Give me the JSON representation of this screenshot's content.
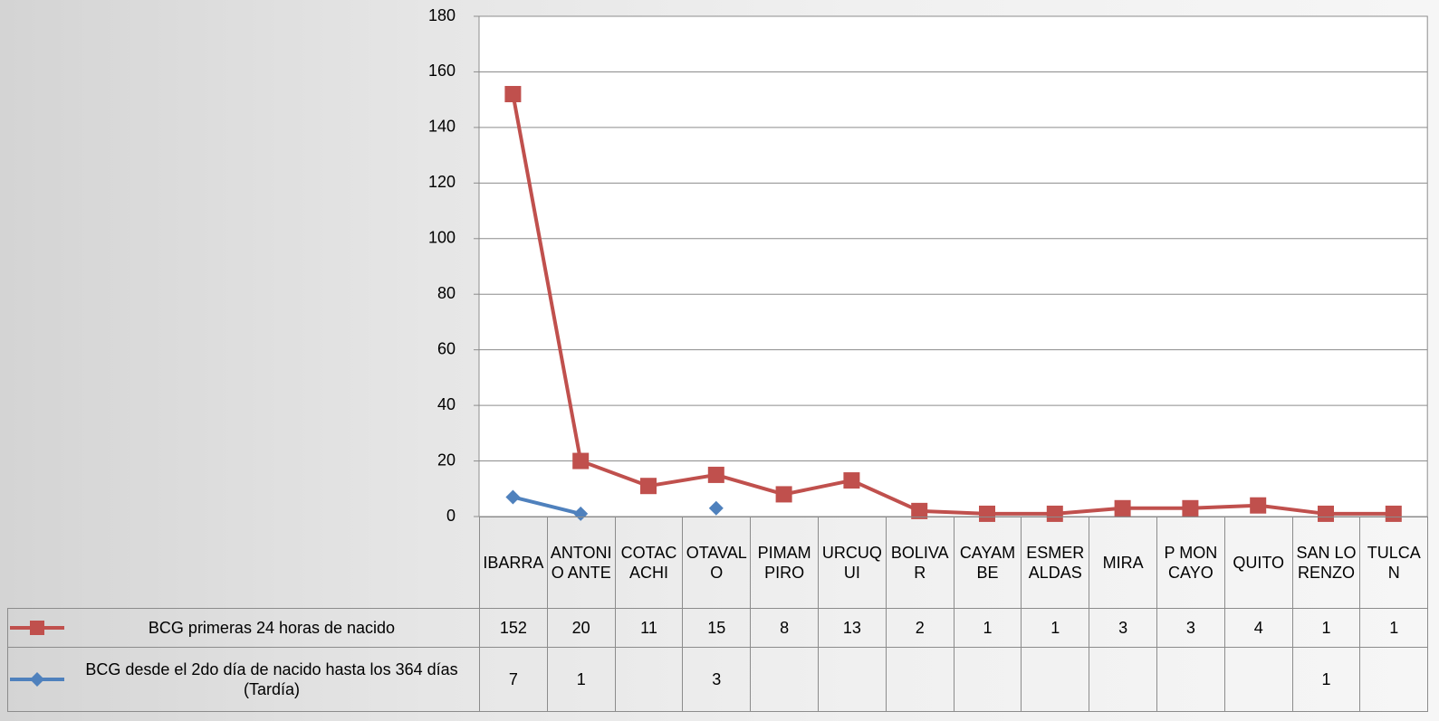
{
  "chart_data": {
    "type": "line",
    "categories": [
      "IBARRA",
      "ANTONIO ANTE",
      "COTACACHI",
      "OTAVALO",
      "PIMAMPIRO",
      "URCUQUI",
      "BOLIVAR",
      "CAYAMBE",
      "ESMERALDAS",
      "MIRA",
      "P MONCAYO",
      "QUITO",
      "SAN LORENZO",
      "TULCAN"
    ],
    "series": [
      {
        "name": "BCG primeras 24 horas de nacido",
        "color": "#c0504d",
        "values": [
          152,
          20,
          11,
          15,
          8,
          13,
          2,
          1,
          1,
          3,
          3,
          4,
          1,
          1
        ]
      },
      {
        "name": "BCG desde el 2do  día de nacido hasta los 364 días (Tardía)",
        "color": "#4f81bd",
        "values": [
          7,
          1,
          null,
          3,
          null,
          null,
          null,
          null,
          null,
          null,
          null,
          null,
          1,
          null
        ]
      }
    ],
    "ylim": [
      0,
      180
    ],
    "yticks": [
      0,
      20,
      40,
      60,
      80,
      100,
      120,
      140,
      160,
      180
    ],
    "grid": true
  }
}
